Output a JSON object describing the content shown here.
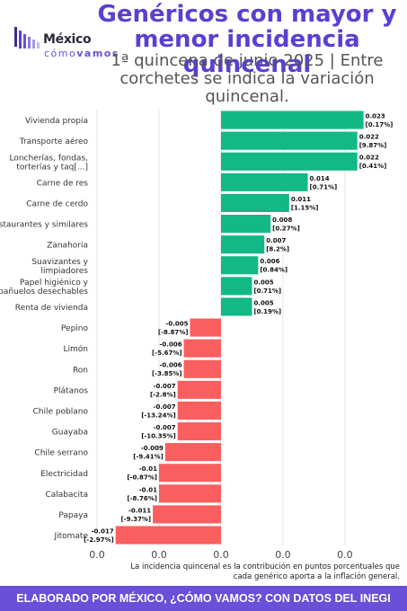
{
  "header": {
    "title": "Genéricos con mayor y menor incidencia quincenal",
    "subtitle": "1ª quincena de junio 2025 | Entre corchetes se indica la variación quincenal.",
    "logo_line1": "México",
    "logo_line2a": "cómo",
    "logo_line2b": "vamos"
  },
  "chart_data": {
    "type": "bar",
    "orientation": "horizontal",
    "categories": [
      "Vivienda propia",
      "Transporte aéreo",
      "Loncherías, fondas, torterías y taq[...]",
      "Carne de res",
      "Carne de cerdo",
      "Restaurantes y similares",
      "Zanahoria",
      "Suavizantes y limpiadores",
      "Papel higiénico y pañuelos desechables",
      "Renta de vivienda",
      "Pepino",
      "Limón",
      "Ron",
      "Plátanos",
      "Chile poblano",
      "Guayaba",
      "Chile serrano",
      "Electricidad",
      "Calabacita",
      "Papaya",
      "Jitomate"
    ],
    "values": [
      0.023,
      0.022,
      0.022,
      0.014,
      0.011,
      0.008,
      0.007,
      0.006,
      0.005,
      0.005,
      -0.005,
      -0.006,
      -0.006,
      -0.007,
      -0.007,
      -0.007,
      -0.009,
      -0.01,
      -0.01,
      -0.011,
      -0.017
    ],
    "value_labels": [
      "0.023",
      "0.022",
      "0.022",
      "0.014",
      "0.011",
      "0.008",
      "0.007",
      "0.006",
      "0.005",
      "0.005",
      "-0.005",
      "-0.006",
      "-0.006",
      "-0.007",
      "-0.007",
      "-0.007",
      "-0.009",
      "-0.01",
      "-0.01",
      "-0.011",
      "-0.017"
    ],
    "variation_labels": [
      "[0.17%]",
      "[9.87%]",
      "[0.41%]",
      "[0.71%]",
      "[1.15%]",
      "[0.27%]",
      "[8.2%]",
      "[0.84%]",
      "[0.71%]",
      "[0.19%]",
      "[-8.87%]",
      "[-5.67%]",
      "[-3.85%]",
      "[-2.8%]",
      "[-13.24%]",
      "[-10.35%]",
      "[-9.41%]",
      "[-0.87%]",
      "[-8.76%]",
      "[-9.37%]",
      "[-2.97%]"
    ],
    "x_tick_labels": [
      "0.0",
      "0.0",
      "0.0",
      "0.0",
      "0.0"
    ],
    "x_tick_values": [
      -0.02,
      -0.01,
      0.0,
      0.01,
      0.02
    ],
    "xlim": [
      -0.02,
      0.029
    ],
    "colors": {
      "positive": "#12b886",
      "negative": "#fa5f5f",
      "grid": "#e6e6e6"
    },
    "grid": true
  },
  "note": "La incidencia quincenal es la contribución en puntos porcentuales que cada genérico aporta a la inflación general.",
  "footer": "ELABORADO POR MÉXICO, ¿CÓMO VAMOS? CON DATOS DEL INEGI"
}
